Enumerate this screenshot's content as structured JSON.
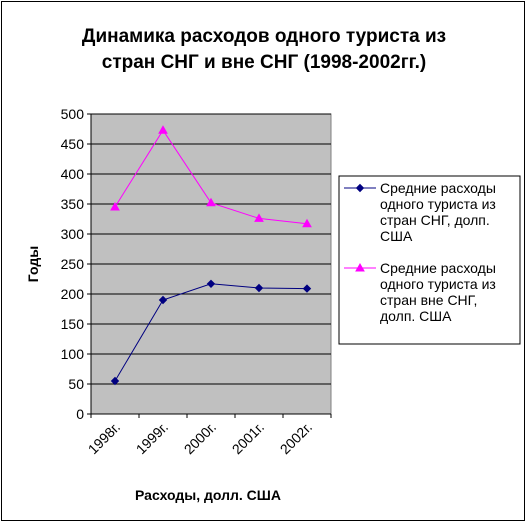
{
  "chart_data": {
    "type": "line",
    "title_lines": [
      "Динамика расходов одного туриста из",
      "стран СНГ и вне СНГ (1998-2002гг.)"
    ],
    "xlabel": "Расходы, долл. США",
    "ylabel": "Годы",
    "categories": [
      "1998г.",
      "1999г.",
      "2000г.",
      "2001г.",
      "2002г."
    ],
    "ylim": [
      0,
      500
    ],
    "yticks": [
      0,
      50,
      100,
      150,
      200,
      250,
      300,
      350,
      400,
      450,
      500
    ],
    "grid": true,
    "legend_position": "right",
    "plot_background": "#c0c0c0",
    "series": [
      {
        "name_lines": [
          "Средние расходы",
          "одного туриста из",
          "стран СНГ, долп.",
          "США"
        ],
        "color": "#000080",
        "marker": "diamond",
        "values": [
          55,
          190,
          217,
          210,
          209
        ]
      },
      {
        "name_lines": [
          "Средние расходы",
          "одного туриста из",
          "стран вне СНГ,",
          "долп. США"
        ],
        "color": "#ff00ff",
        "marker": "triangle",
        "values": [
          345,
          473,
          352,
          326,
          317
        ]
      }
    ]
  }
}
